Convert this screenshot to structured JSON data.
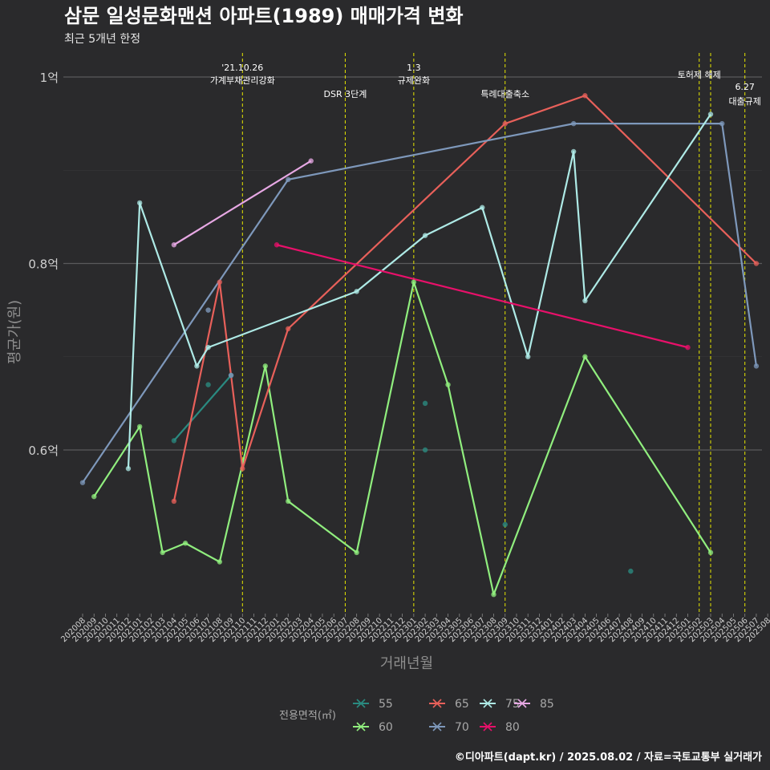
{
  "chart_data": {
    "type": "line",
    "title": "삼문 일성문화맨션 아파트(1989) 매매가격 변화",
    "subtitle": "최근 5개년 한정",
    "xlabel": "거래년월",
    "ylabel": "평균가(원)",
    "caption": "©디아파트(dapt.kr) / 2025.08.02 / 자료=국토교통부 실거래가",
    "ylim": [
      0.43,
      1.03
    ],
    "yticks": [
      {
        "value": 0.6,
        "label": "0.6억"
      },
      {
        "value": 0.8,
        "label": "0.8억"
      },
      {
        "value": 1.0,
        "label": "1억"
      }
    ],
    "x_categories": [
      "202008",
      "202009",
      "202010",
      "202011",
      "202012",
      "202101",
      "202102",
      "202103",
      "202104",
      "202105",
      "202106",
      "202107",
      "202108",
      "202109",
      "202110",
      "202111",
      "202112",
      "202201",
      "202202",
      "202203",
      "202204",
      "202205",
      "202206",
      "202207",
      "202208",
      "202209",
      "202210",
      "202211",
      "202212",
      "202301",
      "202302",
      "202303",
      "202304",
      "202305",
      "202306",
      "202307",
      "202308",
      "202309",
      "202310",
      "202311",
      "202312",
      "202401",
      "202402",
      "202403",
      "202404",
      "202405",
      "202406",
      "202407",
      "202408",
      "202409",
      "202410",
      "202411",
      "202412",
      "202501",
      "202502",
      "202503",
      "202504",
      "202505",
      "202506",
      "202507",
      "202508"
    ],
    "events": [
      {
        "x": "202110",
        "lines": [
          "'21.10.26",
          "가계부채관리강화"
        ],
        "row": 0
      },
      {
        "x": "202207",
        "lines": [
          "DSR 3단계"
        ],
        "row": 2
      },
      {
        "x": "202301",
        "lines": [
          "1.3",
          "규제완화"
        ],
        "row": 0
      },
      {
        "x": "202309",
        "lines": [
          "특례대출축소"
        ],
        "row": 2
      },
      {
        "x": "202502",
        "lines": [
          "토허제 해제"
        ],
        "row": 1
      },
      {
        "x": "202503",
        "lines": [],
        "row": 1
      },
      {
        "x": "202506",
        "lines": [
          "6.27",
          "대출규제"
        ],
        "row": 1
      }
    ],
    "legend_title": "전용면적(㎡)",
    "series": [
      {
        "name": "55",
        "color": "#2a8a80",
        "points": [
          [
            "202104",
            0.61
          ],
          [
            "202109",
            0.68
          ]
        ]
      },
      {
        "name": "60",
        "color": "#90ee7e",
        "points": [
          [
            "202009",
            0.55
          ],
          [
            "202101",
            0.625
          ],
          [
            "202103",
            0.49
          ],
          [
            "202105",
            0.5
          ],
          [
            "202108",
            0.48
          ],
          [
            "202112",
            0.69
          ],
          [
            "202202",
            0.545
          ],
          [
            "202208",
            0.49
          ],
          [
            "202301",
            0.78
          ],
          [
            "202304",
            0.67
          ],
          [
            "202308",
            0.445
          ],
          [
            "202404",
            0.7
          ],
          [
            "202503",
            0.49
          ]
        ]
      },
      {
        "name": "65",
        "color": "#e8605a",
        "points": [
          [
            "202104",
            0.545
          ],
          [
            "202108",
            0.78
          ],
          [
            "202110",
            0.58
          ],
          [
            "202202",
            0.73
          ],
          [
            "202309",
            0.95
          ],
          [
            "202404",
            0.98
          ],
          [
            "202507",
            0.8
          ]
        ]
      },
      {
        "name": "70",
        "color": "#7e98bb",
        "points": [
          [
            "202008",
            0.565
          ],
          [
            "202202",
            0.89
          ],
          [
            "202403",
            0.95
          ],
          [
            "202504",
            0.95
          ],
          [
            "202507",
            0.69
          ]
        ]
      },
      {
        "name": "75",
        "color": "#aeeae6",
        "points": [
          [
            "202012",
            0.58
          ],
          [
            "202101",
            0.865
          ],
          [
            "202106",
            0.69
          ],
          [
            "202107",
            0.71
          ],
          [
            "202208",
            0.77
          ],
          [
            "202302",
            0.83
          ],
          [
            "202307",
            0.86
          ],
          [
            "202311",
            0.7
          ],
          [
            "202403",
            0.92
          ],
          [
            "202404",
            0.76
          ],
          [
            "202503",
            0.96
          ]
        ]
      },
      {
        "name": "80",
        "color": "#e8106a",
        "points": [
          [
            "202201",
            0.82
          ],
          [
            "202501",
            0.71
          ]
        ]
      },
      {
        "name": "85",
        "color": "#e7a8e4",
        "points": [
          [
            "202104",
            0.82
          ],
          [
            "202204",
            0.91
          ]
        ]
      }
    ],
    "scatter_points": [
      {
        "series": "55",
        "x": "202107",
        "y": 0.67
      },
      {
        "series": "55",
        "x": "202302",
        "y": 0.65
      },
      {
        "series": "55",
        "x": "202302",
        "y": 0.6
      },
      {
        "series": "55",
        "x": "202309",
        "y": 0.52
      },
      {
        "series": "55",
        "x": "202408",
        "y": 0.47
      },
      {
        "series": "70",
        "x": "202107",
        "y": 0.75
      },
      {
        "series": "70",
        "x": "202109",
        "y": 0.68
      }
    ]
  }
}
